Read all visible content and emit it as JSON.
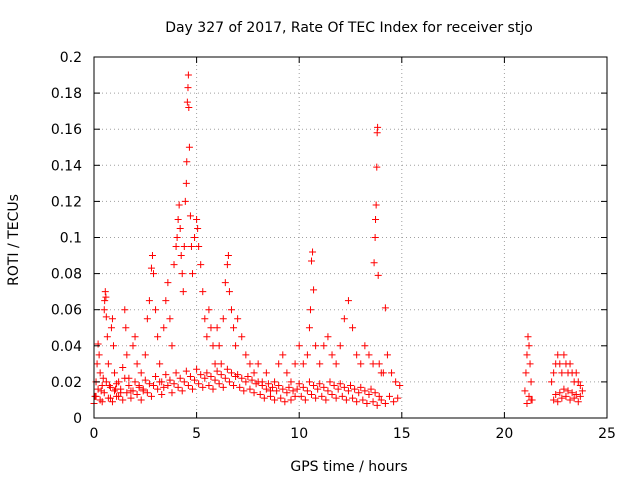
{
  "chart_data": {
    "type": "scatter",
    "title": "Day 327 of 2017, Rate Of TEC Index for receiver stjo",
    "xlabel": "GPS time / hours",
    "ylabel": "ROTI / TECUs",
    "xlim": [
      0,
      25
    ],
    "ylim": [
      0,
      0.2
    ],
    "x_ticks": [
      0,
      5,
      10,
      15,
      20,
      25
    ],
    "y_ticks": [
      0,
      0.02,
      0.04,
      0.06,
      0.08,
      0.1,
      0.12,
      0.14,
      0.16,
      0.18,
      0.2
    ],
    "x_tick_labels": [
      "0",
      "5",
      "10",
      "15",
      "20",
      "25"
    ],
    "y_tick_labels": [
      "0",
      "0.02",
      "0.04",
      "0.06",
      "0.08",
      "0.1",
      "0.12",
      "0.14",
      "0.16",
      "0.18",
      "0.2"
    ],
    "grid": true,
    "grid_style": "dotted",
    "marker": "+",
    "color": "#ff0000",
    "points": [
      [
        0.05,
        0.012
      ],
      [
        0.1,
        0.02
      ],
      [
        0.15,
        0.03
      ],
      [
        0.2,
        0.041
      ],
      [
        0.25,
        0.035
      ],
      [
        0.3,
        0.025
      ],
      [
        0.35,
        0.015
      ],
      [
        0.4,
        0.009
      ],
      [
        0.45,
        0.022
      ],
      [
        0.5,
        0.06
      ],
      [
        0.52,
        0.065
      ],
      [
        0.55,
        0.07
      ],
      [
        0.58,
        0.067
      ],
      [
        0.6,
        0.056
      ],
      [
        0.65,
        0.045
      ],
      [
        0.7,
        0.03
      ],
      [
        0.75,
        0.018
      ],
      [
        0.8,
        0.011
      ],
      [
        0.85,
        0.05
      ],
      [
        0.9,
        0.055
      ],
      [
        0.95,
        0.04
      ],
      [
        1.0,
        0.025
      ],
      [
        1.05,
        0.016
      ],
      [
        1.1,
        0.012
      ],
      [
        1.2,
        0.02
      ],
      [
        1.3,
        0.014
      ],
      [
        1.4,
        0.028
      ],
      [
        1.5,
        0.06
      ],
      [
        1.55,
        0.05
      ],
      [
        1.6,
        0.035
      ],
      [
        1.7,
        0.022
      ],
      [
        1.8,
        0.015
      ],
      [
        1.9,
        0.04
      ],
      [
        2.0,
        0.045
      ],
      [
        2.1,
        0.03
      ],
      [
        2.2,
        0.018
      ],
      [
        2.3,
        0.025
      ],
      [
        2.4,
        0.015
      ],
      [
        2.5,
        0.035
      ],
      [
        2.6,
        0.055
      ],
      [
        2.7,
        0.065
      ],
      [
        2.8,
        0.083
      ],
      [
        2.85,
        0.09
      ],
      [
        2.9,
        0.08
      ],
      [
        3.0,
        0.06
      ],
      [
        3.1,
        0.045
      ],
      [
        3.2,
        0.03
      ],
      [
        3.3,
        0.02
      ],
      [
        3.4,
        0.05
      ],
      [
        3.5,
        0.065
      ],
      [
        3.6,
        0.075
      ],
      [
        3.7,
        0.055
      ],
      [
        3.8,
        0.04
      ],
      [
        3.9,
        0.085
      ],
      [
        4.0,
        0.095
      ],
      [
        4.05,
        0.1
      ],
      [
        4.1,
        0.11
      ],
      [
        4.15,
        0.118
      ],
      [
        4.2,
        0.105
      ],
      [
        4.25,
        0.09
      ],
      [
        4.3,
        0.08
      ],
      [
        4.35,
        0.07
      ],
      [
        4.4,
        0.095
      ],
      [
        4.45,
        0.12
      ],
      [
        4.5,
        0.13
      ],
      [
        4.52,
        0.142
      ],
      [
        4.55,
        0.175
      ],
      [
        4.58,
        0.183
      ],
      [
        4.6,
        0.19
      ],
      [
        4.62,
        0.172
      ],
      [
        4.65,
        0.15
      ],
      [
        4.7,
        0.112
      ],
      [
        4.75,
        0.095
      ],
      [
        4.8,
        0.08
      ],
      [
        4.9,
        0.1
      ],
      [
        5.0,
        0.11
      ],
      [
        5.05,
        0.105
      ],
      [
        5.1,
        0.095
      ],
      [
        5.2,
        0.085
      ],
      [
        5.3,
        0.07
      ],
      [
        5.4,
        0.055
      ],
      [
        5.5,
        0.045
      ],
      [
        5.6,
        0.06
      ],
      [
        5.7,
        0.05
      ],
      [
        5.8,
        0.04
      ],
      [
        5.9,
        0.03
      ],
      [
        6.0,
        0.05
      ],
      [
        6.1,
        0.04
      ],
      [
        6.2,
        0.03
      ],
      [
        6.3,
        0.055
      ],
      [
        6.4,
        0.075
      ],
      [
        6.5,
        0.085
      ],
      [
        6.55,
        0.09
      ],
      [
        6.6,
        0.07
      ],
      [
        6.7,
        0.06
      ],
      [
        6.8,
        0.05
      ],
      [
        6.9,
        0.04
      ],
      [
        7.0,
        0.055
      ],
      [
        7.2,
        0.045
      ],
      [
        7.4,
        0.035
      ],
      [
        7.6,
        0.03
      ],
      [
        7.8,
        0.025
      ],
      [
        8.0,
        0.03
      ],
      [
        8.2,
        0.02
      ],
      [
        8.4,
        0.025
      ],
      [
        8.6,
        0.015
      ],
      [
        8.8,
        0.02
      ],
      [
        9.0,
        0.03
      ],
      [
        9.2,
        0.035
      ],
      [
        9.4,
        0.025
      ],
      [
        9.6,
        0.02
      ],
      [
        9.8,
        0.03
      ],
      [
        10.0,
        0.04
      ],
      [
        10.2,
        0.03
      ],
      [
        10.4,
        0.035
      ],
      [
        10.5,
        0.05
      ],
      [
        10.55,
        0.06
      ],
      [
        10.6,
        0.087
      ],
      [
        10.65,
        0.092
      ],
      [
        10.7,
        0.071
      ],
      [
        10.8,
        0.04
      ],
      [
        11.0,
        0.03
      ],
      [
        11.2,
        0.04
      ],
      [
        11.4,
        0.045
      ],
      [
        11.6,
        0.035
      ],
      [
        11.8,
        0.03
      ],
      [
        12.0,
        0.04
      ],
      [
        12.2,
        0.055
      ],
      [
        12.4,
        0.065
      ],
      [
        12.6,
        0.05
      ],
      [
        12.8,
        0.035
      ],
      [
        13.0,
        0.03
      ],
      [
        13.2,
        0.04
      ],
      [
        13.4,
        0.035
      ],
      [
        13.6,
        0.03
      ],
      [
        13.65,
        0.086
      ],
      [
        13.7,
        0.1
      ],
      [
        13.72,
        0.11
      ],
      [
        13.75,
        0.118
      ],
      [
        13.78,
        0.139
      ],
      [
        13.8,
        0.158
      ],
      [
        13.82,
        0.161
      ],
      [
        13.85,
        0.079
      ],
      [
        13.9,
        0.03
      ],
      [
        14.0,
        0.025
      ],
      [
        14.1,
        0.025
      ],
      [
        14.2,
        0.061
      ],
      [
        14.3,
        0.035
      ],
      [
        14.5,
        0.025
      ],
      [
        14.7,
        0.02
      ],
      [
        14.9,
        0.018
      ],
      [
        21.0,
        0.015
      ],
      [
        21.05,
        0.025
      ],
      [
        21.1,
        0.035
      ],
      [
        21.15,
        0.045
      ],
      [
        21.2,
        0.04
      ],
      [
        21.25,
        0.03
      ],
      [
        21.3,
        0.02
      ],
      [
        21.35,
        0.01
      ],
      [
        22.3,
        0.02
      ],
      [
        22.4,
        0.025
      ],
      [
        22.5,
        0.03
      ],
      [
        22.6,
        0.035
      ],
      [
        22.7,
        0.03
      ],
      [
        22.8,
        0.025
      ],
      [
        22.9,
        0.035
      ],
      [
        23.0,
        0.03
      ],
      [
        23.1,
        0.025
      ],
      [
        23.2,
        0.03
      ],
      [
        23.3,
        0.025
      ],
      [
        23.4,
        0.02
      ],
      [
        23.5,
        0.025
      ],
      [
        23.6,
        0.02
      ],
      [
        23.7,
        0.018
      ],
      [
        23.8,
        0.015
      ]
    ],
    "band_points": [
      [
        0.0,
        0.008
      ],
      [
        0.1,
        0.012
      ],
      [
        0.2,
        0.016
      ],
      [
        0.3,
        0.01
      ],
      [
        0.4,
        0.018
      ],
      [
        0.5,
        0.014
      ],
      [
        0.6,
        0.02
      ],
      [
        0.7,
        0.011
      ],
      [
        0.8,
        0.017
      ],
      [
        0.9,
        0.009
      ],
      [
        1.0,
        0.015
      ],
      [
        1.1,
        0.019
      ],
      [
        1.2,
        0.012
      ],
      [
        1.3,
        0.016
      ],
      [
        1.4,
        0.01
      ],
      [
        1.5,
        0.022
      ],
      [
        1.6,
        0.014
      ],
      [
        1.7,
        0.018
      ],
      [
        1.8,
        0.011
      ],
      [
        1.9,
        0.015
      ],
      [
        2.0,
        0.02
      ],
      [
        2.1,
        0.013
      ],
      [
        2.2,
        0.017
      ],
      [
        2.3,
        0.01
      ],
      [
        2.4,
        0.016
      ],
      [
        2.5,
        0.021
      ],
      [
        2.6,
        0.014
      ],
      [
        2.7,
        0.019
      ],
      [
        2.8,
        0.012
      ],
      [
        2.9,
        0.018
      ],
      [
        3.0,
        0.023
      ],
      [
        3.1,
        0.016
      ],
      [
        3.2,
        0.02
      ],
      [
        3.3,
        0.013
      ],
      [
        3.4,
        0.017
      ],
      [
        3.5,
        0.024
      ],
      [
        3.6,
        0.018
      ],
      [
        3.7,
        0.021
      ],
      [
        3.8,
        0.014
      ],
      [
        3.9,
        0.019
      ],
      [
        4.0,
        0.025
      ],
      [
        4.1,
        0.017
      ],
      [
        4.2,
        0.022
      ],
      [
        4.3,
        0.015
      ],
      [
        4.4,
        0.02
      ],
      [
        4.5,
        0.026
      ],
      [
        4.6,
        0.018
      ],
      [
        4.7,
        0.023
      ],
      [
        4.8,
        0.016
      ],
      [
        4.9,
        0.021
      ],
      [
        5.0,
        0.027
      ],
      [
        5.1,
        0.019
      ],
      [
        5.2,
        0.024
      ],
      [
        5.3,
        0.017
      ],
      [
        5.4,
        0.022
      ],
      [
        5.5,
        0.025
      ],
      [
        5.6,
        0.018
      ],
      [
        5.7,
        0.023
      ],
      [
        5.8,
        0.016
      ],
      [
        5.9,
        0.021
      ],
      [
        6.0,
        0.026
      ],
      [
        6.1,
        0.019
      ],
      [
        6.2,
        0.024
      ],
      [
        6.3,
        0.017
      ],
      [
        6.4,
        0.022
      ],
      [
        6.5,
        0.027
      ],
      [
        6.6,
        0.02
      ],
      [
        6.7,
        0.025
      ],
      [
        6.8,
        0.018
      ],
      [
        6.9,
        0.023
      ],
      [
        7.0,
        0.024
      ],
      [
        7.1,
        0.017
      ],
      [
        7.2,
        0.022
      ],
      [
        7.3,
        0.015
      ],
      [
        7.4,
        0.02
      ],
      [
        7.5,
        0.023
      ],
      [
        7.6,
        0.016
      ],
      [
        7.7,
        0.021
      ],
      [
        7.8,
        0.014
      ],
      [
        7.9,
        0.019
      ],
      [
        8.0,
        0.02
      ],
      [
        8.1,
        0.013
      ],
      [
        8.2,
        0.018
      ],
      [
        8.3,
        0.011
      ],
      [
        8.4,
        0.016
      ],
      [
        8.5,
        0.019
      ],
      [
        8.6,
        0.012
      ],
      [
        8.7,
        0.017
      ],
      [
        8.8,
        0.01
      ],
      [
        8.9,
        0.015
      ],
      [
        9.0,
        0.018
      ],
      [
        9.1,
        0.011
      ],
      [
        9.2,
        0.016
      ],
      [
        9.3,
        0.009
      ],
      [
        9.4,
        0.014
      ],
      [
        9.5,
        0.017
      ],
      [
        9.6,
        0.01
      ],
      [
        9.7,
        0.015
      ],
      [
        9.8,
        0.012
      ],
      [
        9.9,
        0.016
      ],
      [
        10.0,
        0.019
      ],
      [
        10.1,
        0.012
      ],
      [
        10.2,
        0.017
      ],
      [
        10.3,
        0.01
      ],
      [
        10.4,
        0.015
      ],
      [
        10.5,
        0.02
      ],
      [
        10.6,
        0.013
      ],
      [
        10.7,
        0.018
      ],
      [
        10.8,
        0.011
      ],
      [
        10.9,
        0.016
      ],
      [
        11.0,
        0.019
      ],
      [
        11.1,
        0.012
      ],
      [
        11.2,
        0.017
      ],
      [
        11.3,
        0.01
      ],
      [
        11.4,
        0.015
      ],
      [
        11.5,
        0.02
      ],
      [
        11.6,
        0.013
      ],
      [
        11.7,
        0.018
      ],
      [
        11.8,
        0.011
      ],
      [
        11.9,
        0.016
      ],
      [
        12.0,
        0.019
      ],
      [
        12.1,
        0.012
      ],
      [
        12.2,
        0.017
      ],
      [
        12.3,
        0.01
      ],
      [
        12.4,
        0.015
      ],
      [
        12.5,
        0.018
      ],
      [
        12.6,
        0.011
      ],
      [
        12.7,
        0.016
      ],
      [
        12.8,
        0.009
      ],
      [
        12.9,
        0.014
      ],
      [
        13.0,
        0.017
      ],
      [
        13.1,
        0.01
      ],
      [
        13.2,
        0.015
      ],
      [
        13.3,
        0.008
      ],
      [
        13.4,
        0.013
      ],
      [
        13.5,
        0.016
      ],
      [
        13.6,
        0.009
      ],
      [
        13.7,
        0.014
      ],
      [
        13.8,
        0.007
      ],
      [
        13.9,
        0.012
      ],
      [
        14.0,
        0.01
      ],
      [
        14.2,
        0.008
      ],
      [
        14.4,
        0.012
      ],
      [
        14.6,
        0.009
      ],
      [
        14.8,
        0.011
      ],
      [
        21.1,
        0.008
      ],
      [
        21.2,
        0.012
      ],
      [
        21.3,
        0.01
      ],
      [
        22.4,
        0.01
      ],
      [
        22.5,
        0.013
      ],
      [
        22.6,
        0.009
      ],
      [
        22.7,
        0.014
      ],
      [
        22.8,
        0.011
      ],
      [
        22.9,
        0.016
      ],
      [
        23.0,
        0.012
      ],
      [
        23.1,
        0.015
      ],
      [
        23.2,
        0.01
      ],
      [
        23.3,
        0.014
      ],
      [
        23.4,
        0.011
      ],
      [
        23.5,
        0.013
      ],
      [
        23.6,
        0.009
      ],
      [
        23.7,
        0.012
      ]
    ]
  }
}
